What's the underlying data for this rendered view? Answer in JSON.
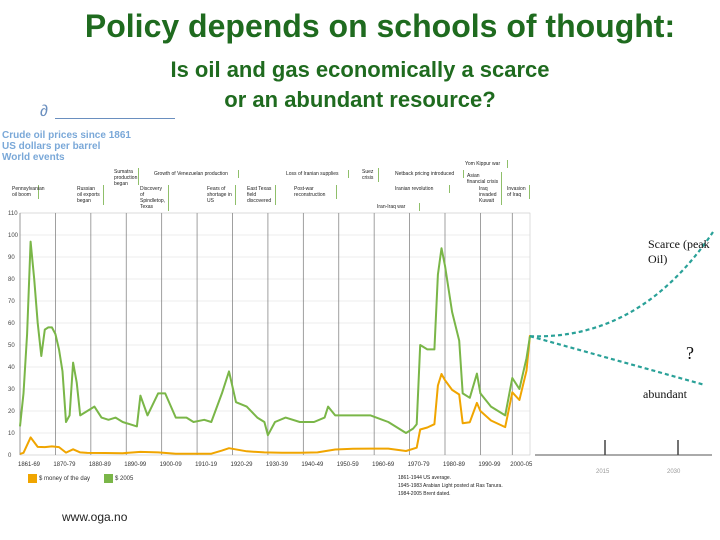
{
  "slide": {
    "title": "Policy depends on schools of thought:",
    "subtitle_line1": "Is oil and gas economically a scarce",
    "subtitle_line2": "or an abundant resource?",
    "footer": "www.oga.no"
  },
  "chart_data": {
    "type": "line",
    "header": [
      "Crude oil prices since 1861",
      "US dollars per barrel",
      "World events"
    ],
    "x_tick_labels": [
      "1861-69",
      "1870-79",
      "1880-89",
      "1890-99",
      "1900-09",
      "1910-19",
      "1920-29",
      "1930-39",
      "1940-49",
      "1950-59",
      "1960-69",
      "1970-79",
      "1980-89",
      "1990-99",
      "2000-05"
    ],
    "y_tick_labels": [
      "0",
      "10",
      "20",
      "30",
      "40",
      "50",
      "60",
      "70",
      "80",
      "90",
      "100",
      "110"
    ],
    "ylim": [
      0,
      110
    ],
    "xlim": [
      1861,
      2030
    ],
    "grid": true,
    "events": [
      "Pennsylvanian oil boom",
      "Russian oil exports began",
      "Sumatra production began",
      "Discovery of Spindletop, Texas",
      "Growth of Venezuelan production",
      "Fears of shortage in US",
      "East Texas field discovered",
      "Post-war reconstruction",
      "Loss of Iranian supplies",
      "Suez crisis",
      "Yom Kippur war",
      "Iranian revolution",
      "Iran-Iraq war",
      "Iraq invaded Kuwait",
      "Invasion of Iraq",
      "Netback pricing introduced",
      "Asian financial crisis"
    ],
    "series": [
      {
        "name": "$ money of the day",
        "color": "#f0a500",
        "x": [
          1861,
          1862,
          1864,
          1866,
          1868,
          1870,
          1872,
          1874,
          1876,
          1878,
          1880,
          1885,
          1890,
          1895,
          1900,
          1905,
          1910,
          1915,
          1918,
          1920,
          1925,
          1930,
          1935,
          1940,
          1945,
          1950,
          1955,
          1960,
          1965,
          1970,
          1973,
          1974,
          1976,
          1978,
          1979,
          1980,
          1981,
          1983,
          1985,
          1986,
          1988,
          1990,
          1991,
          1994,
          1998,
          2000,
          2002,
          2004,
          2005
        ],
        "values": [
          0.5,
          1.0,
          8.0,
          3.7,
          3.6,
          3.9,
          3.6,
          1.1,
          2.6,
          1.2,
          0.95,
          0.9,
          0.8,
          1.4,
          1.2,
          0.6,
          0.6,
          0.6,
          2.0,
          3.1,
          1.7,
          1.2,
          1.0,
          1.0,
          1.2,
          2.5,
          2.8,
          2.9,
          2.9,
          1.8,
          3.3,
          11.6,
          12.5,
          14.0,
          31.6,
          36.8,
          34.0,
          29.6,
          27.5,
          14.4,
          14.9,
          23.7,
          20.0,
          15.7,
          12.7,
          28.5,
          25.0,
          38.3,
          54.5
        ]
      },
      {
        "name": "$ 2005",
        "color": "#7ab648",
        "x": [
          1861,
          1862,
          1863,
          1864,
          1865,
          1866,
          1867,
          1868,
          1869,
          1870,
          1871,
          1872,
          1873,
          1874,
          1875,
          1876,
          1877,
          1878,
          1880,
          1882,
          1884,
          1886,
          1888,
          1890,
          1892,
          1894,
          1895,
          1897,
          1900,
          1902,
          1905,
          1908,
          1910,
          1913,
          1915,
          1918,
          1920,
          1922,
          1925,
          1928,
          1930,
          1931,
          1933,
          1936,
          1940,
          1944,
          1947,
          1948,
          1950,
          1955,
          1960,
          1965,
          1970,
          1972,
          1973,
          1974,
          1976,
          1978,
          1979,
          1980,
          1981,
          1983,
          1985,
          1986,
          1988,
          1990,
          1991,
          1994,
          1998,
          2000,
          2002,
          2004,
          2005
        ],
        "values": [
          13,
          28,
          55,
          97,
          80,
          60,
          45,
          57,
          58,
          58,
          55,
          48,
          38,
          15,
          18,
          42,
          33,
          18,
          20,
          22,
          17,
          16,
          17,
          15,
          14,
          13,
          27,
          18,
          28,
          28,
          17,
          17,
          15,
          16,
          15,
          28,
          38,
          24,
          22,
          17,
          15,
          9,
          15,
          17,
          15,
          15,
          17,
          22,
          18,
          18,
          18,
          15,
          10,
          12,
          14,
          50,
          48,
          48,
          82,
          94,
          86,
          65,
          52,
          28,
          26,
          37,
          28,
          22,
          18,
          35,
          30,
          44,
          54
        ]
      }
    ],
    "projection": {
      "labels": {
        "scarce": "Scarce (peak Oil)",
        "unknown": "?",
        "abundant": "abundant"
      },
      "x_tick_labels": [
        "2015",
        "2030"
      ],
      "color": "#2aa198"
    },
    "legend": [
      "$ money of the day",
      "$ 2005"
    ],
    "notes": [
      "1861-1944 US average.",
      "1945-1983 Arabian Light posted at Ras Tanura.",
      "1984-2005 Brent dated."
    ]
  }
}
